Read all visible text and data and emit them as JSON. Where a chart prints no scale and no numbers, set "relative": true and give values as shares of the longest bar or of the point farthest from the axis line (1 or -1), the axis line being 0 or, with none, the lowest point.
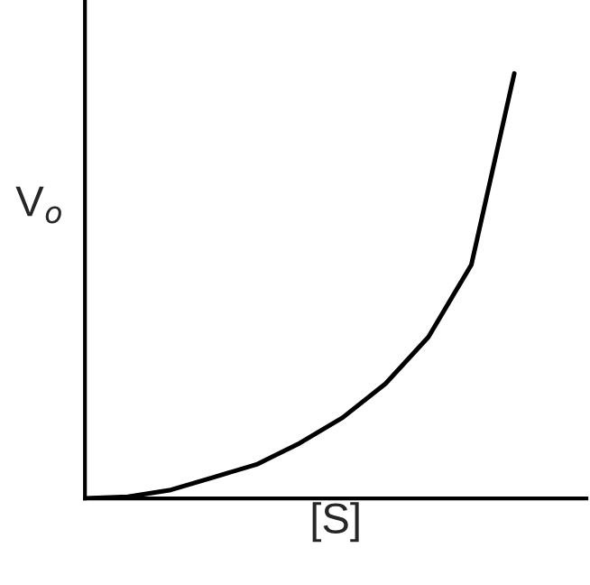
{
  "chart_data": {
    "type": "line",
    "relative": true,
    "xlabel": "[S]",
    "ylabel": "V$_{o}$",
    "categories": [
      null,
      null,
      null,
      null,
      null,
      null,
      null,
      null,
      null,
      null,
      null
    ],
    "series": [
      {
        "color": "#000000",
        "values": [
          0,
          0.004,
          0.02,
          0.05,
          0.08,
          0.13,
          0.19,
          0.27,
          0.38,
          0.55,
          1
        ]
      }
    ],
    "marker": "none",
    "line_style": "solid",
    "grid": false,
    "legend": false
  }
}
